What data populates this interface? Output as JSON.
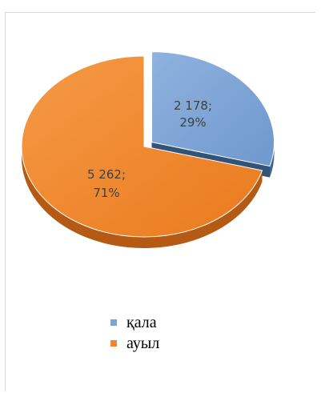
{
  "chart_data": {
    "type": "pie",
    "style": "3d-exploded",
    "categories": [
      "қала",
      "ауыл"
    ],
    "values": [
      2178,
      5262
    ],
    "percent_labels": [
      "29%",
      "71%"
    ],
    "value_labels": [
      "2 178;",
      "5 262;"
    ],
    "colors": [
      "#7da3d4",
      "#f0852a"
    ],
    "legend_position": "bottom"
  }
}
